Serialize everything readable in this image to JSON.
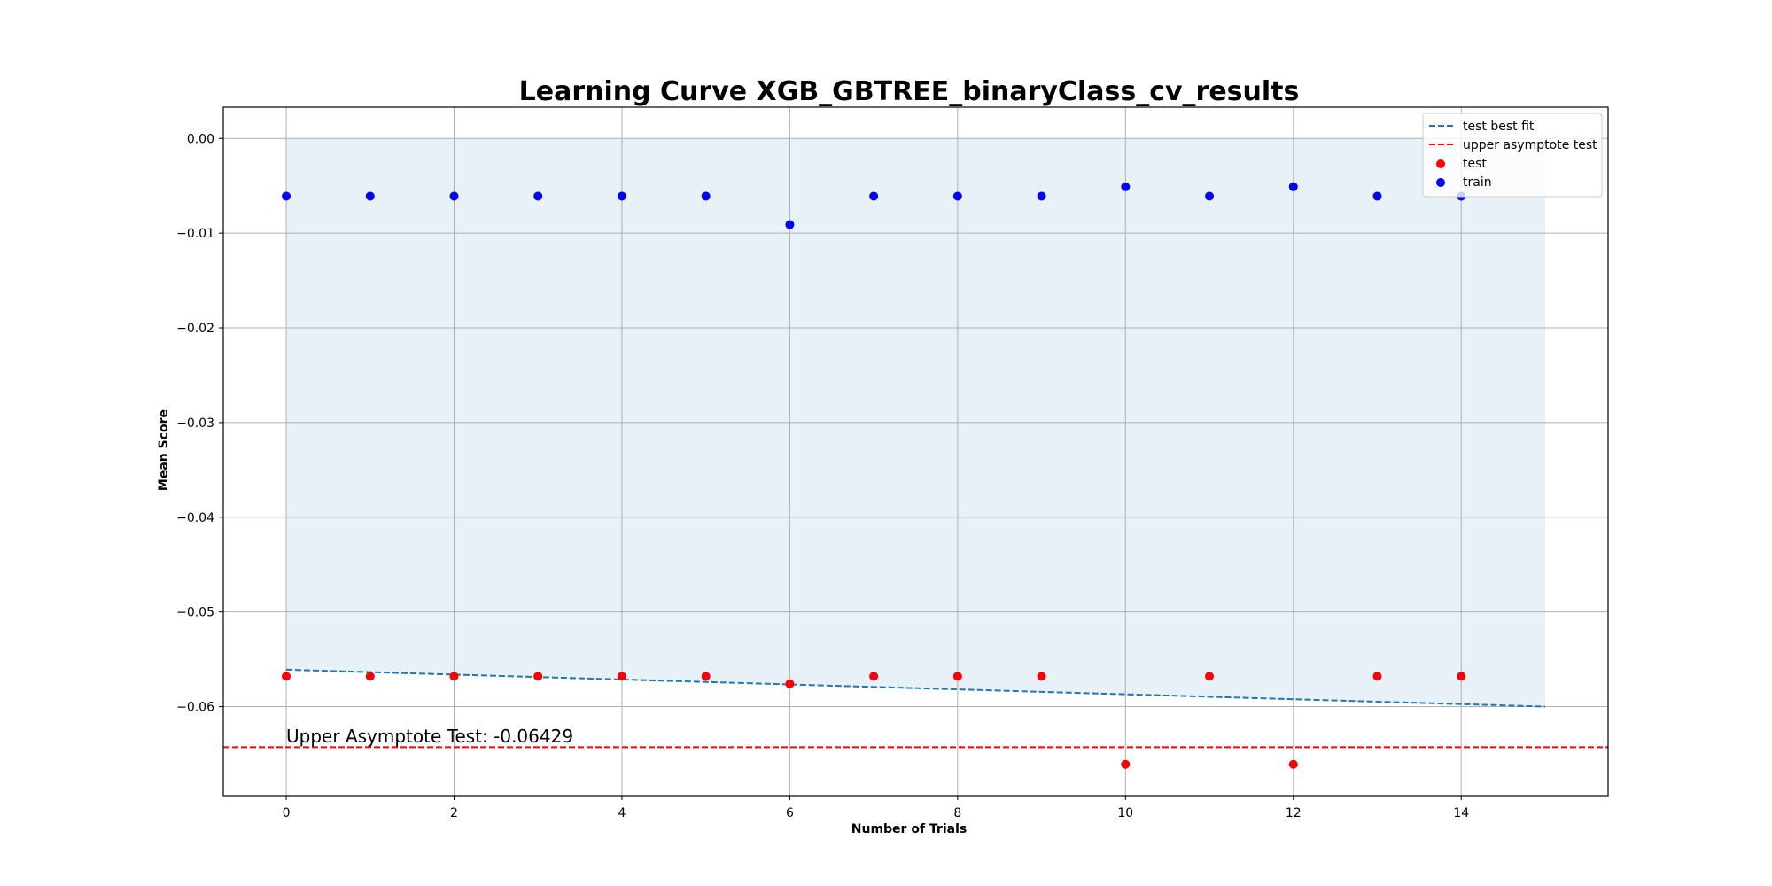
{
  "chart_data": {
    "type": "scatter",
    "title": "Learning Curve XGB_GBTREE_binaryClass_cv_results",
    "xlabel": "Number of Trials",
    "ylabel": "Mean Score",
    "xlim": [
      -0.75,
      15.75
    ],
    "ylim": [
      -0.0694,
      0.0033
    ],
    "x_ticks": [
      0,
      2,
      4,
      6,
      8,
      10,
      12,
      14
    ],
    "x_tick_labels": [
      "0",
      "2",
      "4",
      "6",
      "8",
      "10",
      "12",
      "14"
    ],
    "y_ticks": [
      0.0,
      -0.01,
      -0.02,
      -0.03,
      -0.04,
      -0.05,
      -0.06
    ],
    "y_tick_labels": [
      "0.00",
      "−0.01",
      "−0.02",
      "−0.03",
      "−0.04",
      "−0.05",
      "−0.06"
    ],
    "grid": true,
    "legend_position": "top-right",
    "series": [
      {
        "name": "test",
        "kind": "scatter",
        "color": "#ff0000",
        "x": [
          0,
          1,
          2,
          3,
          4,
          5,
          6,
          7,
          8,
          9,
          10,
          11,
          12,
          13,
          14
        ],
        "y": [
          -0.0568,
          -0.0568,
          -0.0568,
          -0.0568,
          -0.0568,
          -0.0568,
          -0.0576,
          -0.0568,
          -0.0568,
          -0.0568,
          -0.0661,
          -0.0568,
          -0.0661,
          -0.0568,
          -0.0568
        ]
      },
      {
        "name": "train",
        "kind": "scatter",
        "color": "#0000ff",
        "x": [
          0,
          1,
          2,
          3,
          4,
          5,
          6,
          7,
          8,
          9,
          10,
          11,
          12,
          13,
          14
        ],
        "y": [
          -0.0061,
          -0.0061,
          -0.0061,
          -0.0061,
          -0.0061,
          -0.0061,
          -0.0091,
          -0.0061,
          -0.0061,
          -0.0061,
          -0.0051,
          -0.0061,
          -0.0051,
          -0.0061,
          -0.0061
        ]
      },
      {
        "name": "test best fit",
        "kind": "line",
        "style": "dashed",
        "color": "#1f77b4",
        "x": [
          0,
          15
        ],
        "y": [
          -0.0561,
          -0.06
        ]
      },
      {
        "name": "upper asymptote test",
        "kind": "hline",
        "style": "dashed",
        "color": "#ff0000",
        "y": -0.06429
      }
    ],
    "shaded_band": {
      "x": [
        0,
        15
      ],
      "y_top": [
        0.0,
        0.0
      ],
      "y_bottom": [
        -0.0561,
        -0.06
      ],
      "color": "#e8f0f8"
    },
    "annotations": [
      {
        "text": "Upper Asymptote Test: -0.06429",
        "x": 0,
        "y": -0.0638
      }
    ],
    "legend_order": [
      "test best fit",
      "upper asymptote test",
      "test",
      "train"
    ]
  }
}
